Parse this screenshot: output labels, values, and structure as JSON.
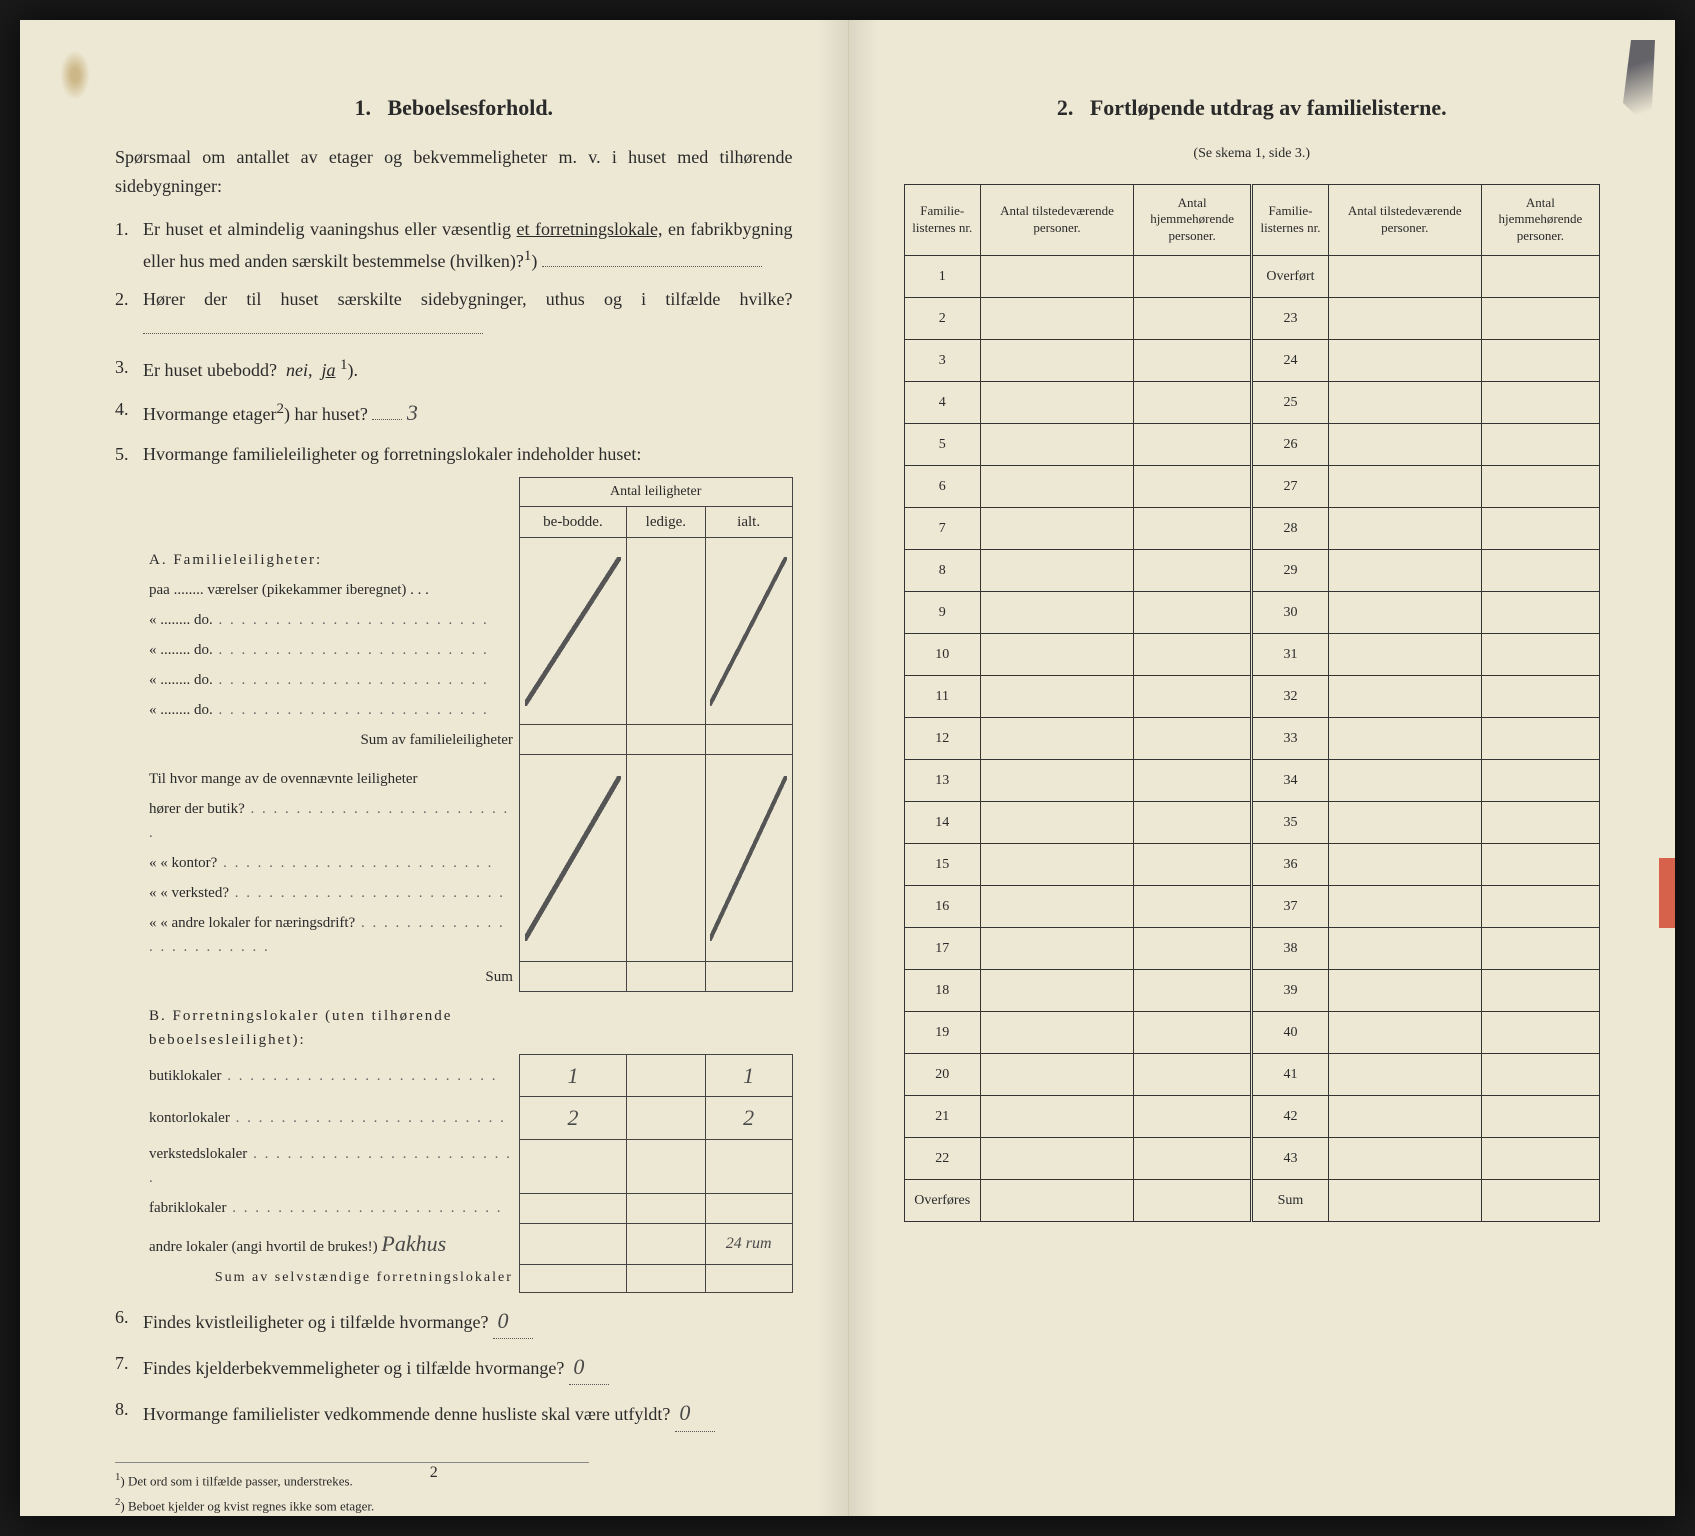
{
  "background_color": "#1a1a1a",
  "paper_color": "#ede8d4",
  "text_color": "#2a2a2a",
  "handwriting_color": "#4a4a4a",
  "left": {
    "section_number": "1.",
    "section_title": "Beboelsesforhold.",
    "intro": "Spørsmaal om antallet av etager og bekvemmeligheter m. v. i huset med tilhørende sidebygninger:",
    "q1_num": "1.",
    "q1": "Er huset et almindelig vaaningshus eller væsentlig",
    "q1_underlined": "et forretningslokale,",
    "q1_rest": "en fabrikbygning eller hus med anden særskilt bestemmelse (hvilken)?",
    "q1_sup": "1",
    "q2_num": "2.",
    "q2": "Hører der til huset særskilte sidebygninger, uthus og i tilfælde hvilke?",
    "q3_num": "3.",
    "q3": "Er huset ubebodd?",
    "q3_ital_nei": "nei,",
    "q3_ital_ja": "ja",
    "q3_sup": "1",
    "q4_num": "4.",
    "q4": "Hvormange etager",
    "q4_sup": "2",
    "q4_rest": "har huset?",
    "q4_answer": "3",
    "q5_num": "5.",
    "q5": "Hvormange familieleiligheter og forretningslokaler indeholder huset:",
    "table5_header": "Antal leiligheter",
    "table5_cols": [
      "be-bodde.",
      "ledige.",
      "ialt."
    ],
    "A_title": "A. Familieleiligheter:",
    "A_rows": [
      "paa ........ værelser (pikekammer iberegnet) . . .",
      "«  ........   do.",
      "«  ........   do.",
      "«  ........   do.",
      "«  ........   do."
    ],
    "A_sum": "Sum av familieleiligheter",
    "A2_intro": "Til hvor mange av de ovennævnte leiligheter",
    "A2_rows": [
      "hører der butik?",
      "«    «  kontor?",
      "«    «  verksted?",
      "«    «  andre lokaler for næringsdrift?"
    ],
    "A2_sum": "Sum",
    "B_title": "B. Forretningslokaler (uten tilhørende beboelsesleilighet):",
    "B_rows": [
      {
        "label": "butiklokaler",
        "v1": "1",
        "v3": "1"
      },
      {
        "label": "kontorlokaler",
        "v1": "2",
        "v3": "2"
      },
      {
        "label": "verkstedslokaler",
        "v1": "",
        "v3": ""
      },
      {
        "label": "fabriklokaler",
        "v1": "",
        "v3": ""
      },
      {
        "label": "andre lokaler (angi hvortil de brukes!)",
        "note": "Pakhus",
        "v1": "",
        "v3": "24 rum"
      }
    ],
    "B_sum": "Sum av selvstændige forretningslokaler",
    "q6_num": "6.",
    "q6": "Findes kvistleiligheter og i tilfælde hvormange?",
    "q6_answer": "0",
    "q7_num": "7.",
    "q7": "Findes kjelderbekvemmeligheter og i tilfælde hvormange?",
    "q7_answer": "0",
    "q8_num": "8.",
    "q8": "Hvormange familielister vedkommende denne husliste skal være utfyldt?",
    "q8_answer": "0",
    "footnote1_sup": "1",
    "footnote1": "Det ord som i tilfælde passer, understrekes.",
    "footnote2_sup": "2",
    "footnote2": "Beboet kjelder og kvist regnes ikke som etager.",
    "page_number": "2"
  },
  "right": {
    "section_number": "2.",
    "section_title": "Fortløpende utdrag av familielisterne.",
    "subtitle": "(Se skema 1, side 3.)",
    "headers": [
      "Familie-listernes nr.",
      "Antal tilstedeværende personer.",
      "Antal hjemmehørende personer.",
      "Familie-listernes nr.",
      "Antal tilstedeværende personer.",
      "Antal hjemmehørende personer."
    ],
    "overfort": "Overført",
    "left_rows": [
      "1",
      "2",
      "3",
      "4",
      "5",
      "6",
      "7",
      "8",
      "9",
      "10",
      "11",
      "12",
      "13",
      "14",
      "15",
      "16",
      "17",
      "18",
      "19",
      "20",
      "21",
      "22"
    ],
    "right_rows": [
      "23",
      "24",
      "25",
      "26",
      "27",
      "28",
      "29",
      "30",
      "31",
      "32",
      "33",
      "34",
      "35",
      "36",
      "37",
      "38",
      "39",
      "40",
      "41",
      "42",
      "43"
    ],
    "overfores": "Overføres",
    "sum": "Sum"
  }
}
